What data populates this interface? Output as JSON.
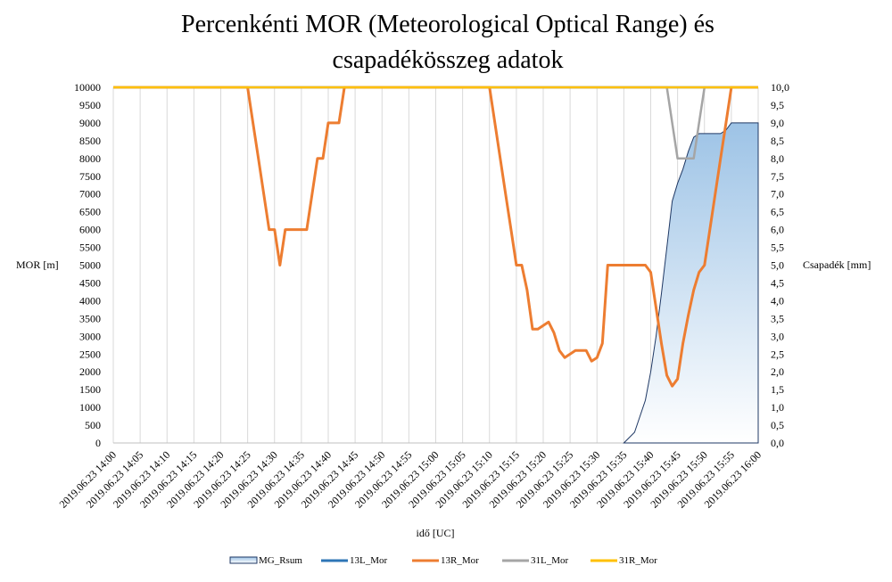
{
  "chart_data": {
    "type": "line",
    "title_line1": "Percenkénti MOR (Meteorological Optical Range) és",
    "title_line2": "csapadékösszeg  adatok",
    "xlabel": "idő [UC]",
    "ylabel_left": "MOR [m]",
    "ylabel_right": "Csapadék [mm]",
    "ylim_left": [
      0,
      10000
    ],
    "ylim_right": [
      0,
      10
    ],
    "xlim": [
      0,
      120
    ],
    "grid": "vertical",
    "legend_position": "bottom",
    "y_ticks_left": [
      "0",
      "500",
      "1000",
      "1500",
      "2000",
      "2500",
      "3000",
      "3500",
      "4000",
      "4500",
      "5000",
      "5500",
      "6000",
      "6500",
      "7000",
      "7500",
      "8000",
      "8500",
      "9000",
      "9500",
      "10000"
    ],
    "y_ticks_right": [
      "0,0",
      "0,5",
      "1,0",
      "1,5",
      "2,0",
      "2,5",
      "3,0",
      "3,5",
      "4,0",
      "4,5",
      "5,0",
      "5,5",
      "6,0",
      "6,5",
      "7,0",
      "7,5",
      "8,0",
      "8,5",
      "9,0",
      "9,5",
      "10,0"
    ],
    "x_tick_labels": [
      "2019.06.23 14:00",
      "2019.06.23 14:05",
      "2019.06.23 14:10",
      "2019.06.23 14:15",
      "2019.06.23 14:20",
      "2019.06.23 14:25",
      "2019.06.23 14:30",
      "2019.06.23 14:35",
      "2019.06.23 14:40",
      "2019.06.23 14:45",
      "2019.06.23 14:50",
      "2019.06.23 14:55",
      "2019.06.23 15:00",
      "2019.06.23 15:05",
      "2019.06.23 15:10",
      "2019.06.23 15:15",
      "2019.06.23 15:20",
      "2019.06.23 15:25",
      "2019.06.23 15:30",
      "2019.06.23 15:35",
      "2019.06.23 15:40",
      "2019.06.23 15:45",
      "2019.06.23 15:50",
      "2019.06.23 15:55",
      "2019.06.23 16:00"
    ],
    "x_tick_minutes": [
      0,
      5,
      10,
      15,
      20,
      25,
      30,
      35,
      40,
      45,
      50,
      55,
      60,
      65,
      70,
      75,
      80,
      85,
      90,
      95,
      100,
      105,
      110,
      115,
      120
    ],
    "series": [
      {
        "name": "MG_Rsum",
        "kind": "area",
        "axis": "right",
        "color": "#1f3864",
        "fill_top": "#9dc3e6",
        "fill_bottom": "#ffffff",
        "points": [
          [
            95,
            0
          ],
          [
            97,
            0.3
          ],
          [
            99,
            1.2
          ],
          [
            100,
            2.0
          ],
          [
            101,
            3.0
          ],
          [
            102,
            4.2
          ],
          [
            103,
            5.5
          ],
          [
            104,
            6.8
          ],
          [
            105,
            7.3
          ],
          [
            106,
            7.7
          ],
          [
            107,
            8.2
          ],
          [
            108,
            8.6
          ],
          [
            109,
            8.7
          ],
          [
            110,
            8.7
          ],
          [
            111,
            8.7
          ],
          [
            112,
            8.7
          ],
          [
            113,
            8.7
          ],
          [
            114,
            8.8
          ],
          [
            115,
            9.0
          ],
          [
            116,
            9.0
          ],
          [
            117,
            9.0
          ],
          [
            118,
            9.0
          ],
          [
            119,
            9.0
          ],
          [
            120,
            9.0
          ],
          [
            120,
            0
          ]
        ]
      },
      {
        "name": "13L_Mor",
        "kind": "line",
        "axis": "left",
        "color": "#2e75b6",
        "points": [
          [
            0,
            10000
          ],
          [
            120,
            10000
          ]
        ]
      },
      {
        "name": "13R_Mor",
        "kind": "line",
        "axis": "left",
        "color": "#ed7d31",
        "points": [
          [
            0,
            10000
          ],
          [
            25,
            10000
          ],
          [
            26,
            9000
          ],
          [
            27,
            8000
          ],
          [
            28,
            7000
          ],
          [
            29,
            6000
          ],
          [
            30,
            6000
          ],
          [
            31,
            5000
          ],
          [
            32,
            6000
          ],
          [
            33,
            6000
          ],
          [
            34,
            6000
          ],
          [
            35,
            6000
          ],
          [
            36,
            6000
          ],
          [
            37,
            7000
          ],
          [
            38,
            8000
          ],
          [
            39,
            8000
          ],
          [
            40,
            9000
          ],
          [
            41,
            9000
          ],
          [
            42,
            9000
          ],
          [
            43,
            10000
          ],
          [
            70,
            10000
          ],
          [
            71,
            9000
          ],
          [
            72,
            8000
          ],
          [
            73,
            7000
          ],
          [
            74,
            6000
          ],
          [
            75,
            5000
          ],
          [
            76,
            5000
          ],
          [
            77,
            4300
          ],
          [
            78,
            3200
          ],
          [
            79,
            3200
          ],
          [
            80,
            3300
          ],
          [
            81,
            3400
          ],
          [
            82,
            3100
          ],
          [
            83,
            2600
          ],
          [
            84,
            2400
          ],
          [
            85,
            2500
          ],
          [
            86,
            2600
          ],
          [
            87,
            2600
          ],
          [
            88,
            2600
          ],
          [
            89,
            2300
          ],
          [
            90,
            2400
          ],
          [
            91,
            2800
          ],
          [
            92,
            5000
          ],
          [
            93,
            5000
          ],
          [
            94,
            5000
          ],
          [
            95,
            5000
          ],
          [
            96,
            5000
          ],
          [
            97,
            5000
          ],
          [
            98,
            5000
          ],
          [
            99,
            5000
          ],
          [
            100,
            4800
          ],
          [
            101,
            3800
          ],
          [
            102,
            2800
          ],
          [
            103,
            1900
          ],
          [
            104,
            1600
          ],
          [
            105,
            1800
          ],
          [
            106,
            2800
          ],
          [
            107,
            3600
          ],
          [
            108,
            4300
          ],
          [
            109,
            4800
          ],
          [
            110,
            5000
          ],
          [
            111,
            6000
          ],
          [
            112,
            7000
          ],
          [
            113,
            8000
          ],
          [
            114,
            9000
          ],
          [
            115,
            10000
          ],
          [
            120,
            10000
          ]
        ]
      },
      {
        "name": "31L_Mor",
        "kind": "line",
        "axis": "left",
        "color": "#a5a5a5",
        "points": [
          [
            0,
            10000
          ],
          [
            103,
            10000
          ],
          [
            104,
            9000
          ],
          [
            105,
            8000
          ],
          [
            106,
            8000
          ],
          [
            107,
            8000
          ],
          [
            108,
            8000
          ],
          [
            109,
            9000
          ],
          [
            110,
            10000
          ],
          [
            120,
            10000
          ]
        ]
      },
      {
        "name": "31R_Mor",
        "kind": "line",
        "axis": "left",
        "color": "#ffc000",
        "points": [
          [
            0,
            10000
          ],
          [
            120,
            10000
          ]
        ]
      }
    ]
  }
}
